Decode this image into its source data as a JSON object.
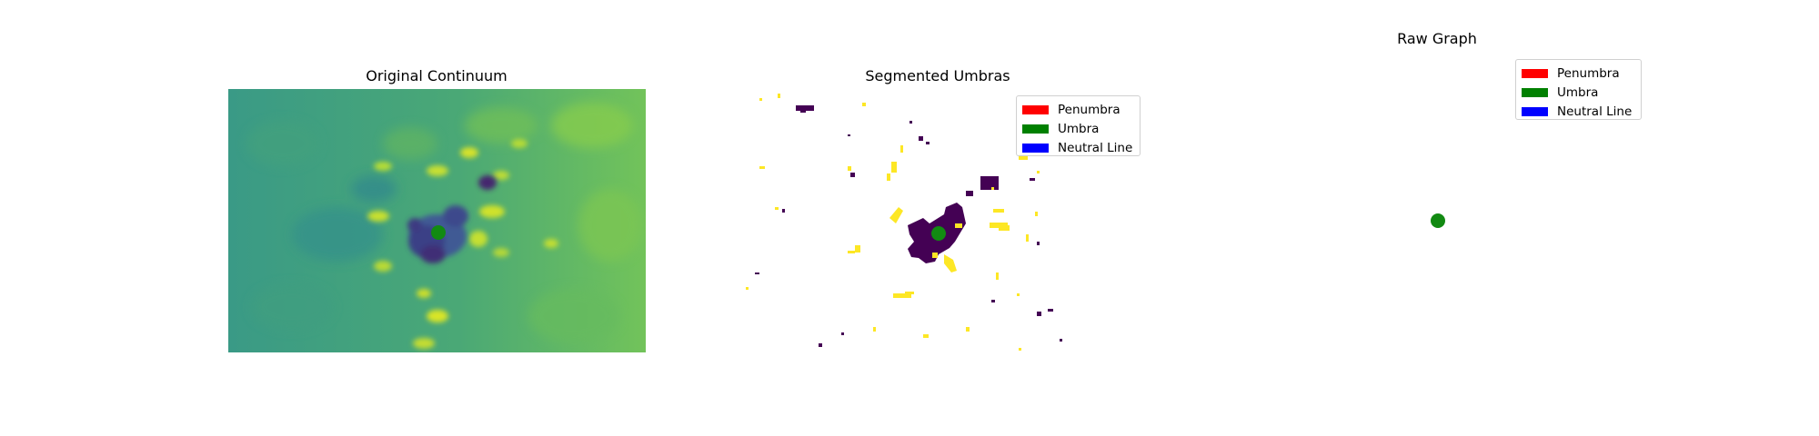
{
  "panels": {
    "original": {
      "title": "Original Continuum"
    },
    "segmented": {
      "title": "Segmented Umbras"
    },
    "graph": {
      "title": "Raw Graph"
    }
  },
  "legend": {
    "items": [
      {
        "label": "Penumbra",
        "color": "#ff0000"
      },
      {
        "label": "Umbra",
        "color": "#008000"
      },
      {
        "label": "Neutral Line",
        "color": "#0000ff"
      }
    ]
  },
  "colors": {
    "continuum_base": "#4aa876",
    "continuum_light": "#8ccf4a",
    "umbra_dark": "#3b2e6e",
    "segment_umbra": "#440154",
    "segment_penumbra": "#fde725",
    "marker": "#128a12"
  }
}
